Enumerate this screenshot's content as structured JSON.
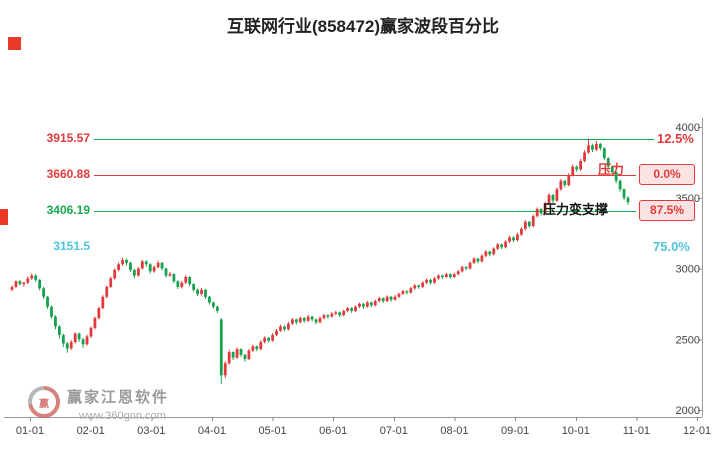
{
  "title": "互联网行业(858472)赢家波段百分比",
  "watermark": {
    "brand": "赢家江恩软件",
    "url": "www.360gnn.com"
  },
  "chart_data": {
    "type": "candlestick",
    "title": "互联网行业(858472)赢家波段百分比",
    "symbol": "858472",
    "y_range": [
      2000,
      4000
    ],
    "y_ticks": [
      "4000",
      "3500",
      "3000",
      "2500",
      "2000"
    ],
    "x_labels": [
      "01-01",
      "02-01",
      "03-01",
      "04-01",
      "05-01",
      "06-01",
      "07-01",
      "08-01",
      "09-01",
      "10-01",
      "11-01",
      "12-01"
    ],
    "legend_position": "none",
    "grid": false,
    "colors": {
      "up": "#e23a3a",
      "down": "#15a24e",
      "pressure_line": "#e23a3a",
      "support_line": "#18a850",
      "cyan_level": "#4fc3dd"
    },
    "levels": [
      {
        "price": "3915.57",
        "value": 3915.57,
        "pct": "12.5%",
        "line": true,
        "line_color": "#18a850",
        "label_color": "#e23a3a",
        "pct_style": "plain"
      },
      {
        "price": "3660.88",
        "value": 3660.88,
        "pct": "0.0%",
        "line": true,
        "line_color": "#e23a3a",
        "label_color": "#e23a3a",
        "pct_style": "box"
      },
      {
        "price": "3406.19",
        "value": 3406.19,
        "pct": "87.5%",
        "line": true,
        "line_color": "#18a850",
        "label_color": "#18a850",
        "pct_style": "box"
      },
      {
        "price": "3151.5",
        "value": 3151.5,
        "pct": "75.0%",
        "line": false,
        "line_color": "",
        "label_color": "#4fc3dd",
        "pct_style": "plain"
      }
    ],
    "annotations": [
      {
        "text": "压力",
        "color": "#e23a3a",
        "near_value": 3660.88
      },
      {
        "text": "压力变支撑",
        "color": "#111111",
        "near_value": 3406.19
      }
    ],
    "candles": [
      [
        2850,
        2880,
        2840,
        2870
      ],
      [
        2870,
        2915,
        2860,
        2910
      ],
      [
        2910,
        2920,
        2880,
        2890
      ],
      [
        2890,
        2905,
        2870,
        2900
      ],
      [
        2900,
        2945,
        2890,
        2930
      ],
      [
        2930,
        2965,
        2920,
        2950
      ],
      [
        2950,
        2960,
        2905,
        2920
      ],
      [
        2920,
        2925,
        2845,
        2860
      ],
      [
        2860,
        2870,
        2785,
        2800
      ],
      [
        2800,
        2805,
        2715,
        2730
      ],
      [
        2730,
        2740,
        2645,
        2660
      ],
      [
        2660,
        2670,
        2570,
        2590
      ],
      [
        2590,
        2600,
        2505,
        2530
      ],
      [
        2530,
        2540,
        2445,
        2470
      ],
      [
        2470,
        2480,
        2405,
        2435
      ],
      [
        2435,
        2495,
        2425,
        2480
      ],
      [
        2480,
        2550,
        2470,
        2540
      ],
      [
        2540,
        2548,
        2482,
        2500
      ],
      [
        2500,
        2510,
        2440,
        2465
      ],
      [
        2465,
        2532,
        2455,
        2520
      ],
      [
        2520,
        2590,
        2510,
        2580
      ],
      [
        2580,
        2660,
        2570,
        2650
      ],
      [
        2650,
        2730,
        2640,
        2720
      ],
      [
        2720,
        2812,
        2712,
        2800
      ],
      [
        2800,
        2880,
        2790,
        2870
      ],
      [
        2870,
        2942,
        2862,
        2930
      ],
      [
        2930,
        3000,
        2922,
        2990
      ],
      [
        2990,
        3042,
        2980,
        3030
      ],
      [
        3030,
        3078,
        3020,
        3060
      ],
      [
        3060,
        3070,
        3022,
        3040
      ],
      [
        3040,
        3048,
        2975,
        2990
      ],
      [
        2990,
        2998,
        2930,
        2950
      ],
      [
        2950,
        3012,
        2942,
        3000
      ],
      [
        3000,
        3062,
        2992,
        3050
      ],
      [
        3050,
        3058,
        3012,
        3030
      ],
      [
        3030,
        3038,
        2965,
        2980
      ],
      [
        2980,
        3022,
        2970,
        3010
      ],
      [
        3010,
        3055,
        3000,
        3040
      ],
      [
        3040,
        3046,
        2986,
        3000
      ],
      [
        3000,
        3006,
        2936,
        2950
      ],
      [
        2950,
        2976,
        2940,
        2960
      ],
      [
        2960,
        2966,
        2896,
        2910
      ],
      [
        2910,
        2916,
        2855,
        2870
      ],
      [
        2870,
        2912,
        2860,
        2900
      ],
      [
        2900,
        2952,
        2890,
        2940
      ],
      [
        2940,
        2945,
        2875,
        2890
      ],
      [
        2890,
        2896,
        2836,
        2850
      ],
      [
        2850,
        2858,
        2805,
        2820
      ],
      [
        2820,
        2862,
        2810,
        2850
      ],
      [
        2850,
        2856,
        2786,
        2800
      ],
      [
        2800,
        2806,
        2745,
        2760
      ],
      [
        2760,
        2766,
        2716,
        2730
      ],
      [
        2730,
        2738,
        2686,
        2700
      ],
      [
        2640,
        2650,
        2185,
        2245
      ],
      [
        2245,
        2345,
        2225,
        2330
      ],
      [
        2330,
        2425,
        2320,
        2410
      ],
      [
        2410,
        2415,
        2352,
        2370
      ],
      [
        2370,
        2442,
        2362,
        2430
      ],
      [
        2430,
        2436,
        2375,
        2390
      ],
      [
        2390,
        2396,
        2342,
        2360
      ],
      [
        2360,
        2432,
        2352,
        2420
      ],
      [
        2420,
        2462,
        2410,
        2450
      ],
      [
        2450,
        2456,
        2415,
        2430
      ],
      [
        2430,
        2492,
        2422,
        2480
      ],
      [
        2480,
        2522,
        2470,
        2510
      ],
      [
        2510,
        2516,
        2476,
        2490
      ],
      [
        2490,
        2542,
        2482,
        2530
      ],
      [
        2530,
        2572,
        2522,
        2560
      ],
      [
        2560,
        2602,
        2552,
        2590
      ],
      [
        2590,
        2596,
        2556,
        2570
      ],
      [
        2570,
        2622,
        2562,
        2610
      ],
      [
        2610,
        2650,
        2600,
        2640
      ],
      [
        2640,
        2646,
        2606,
        2620
      ],
      [
        2620,
        2660,
        2612,
        2650
      ],
      [
        2650,
        2656,
        2616,
        2630
      ],
      [
        2630,
        2672,
        2622,
        2660
      ],
      [
        2660,
        2666,
        2626,
        2640
      ],
      [
        2640,
        2646,
        2606,
        2620
      ],
      [
        2620,
        2662,
        2612,
        2650
      ],
      [
        2650,
        2680,
        2640,
        2670
      ],
      [
        2670,
        2676,
        2646,
        2660
      ],
      [
        2660,
        2692,
        2652,
        2680
      ],
      [
        2680,
        2700,
        2670,
        2690
      ],
      [
        2690,
        2696,
        2656,
        2670
      ],
      [
        2670,
        2710,
        2662,
        2700
      ],
      [
        2700,
        2730,
        2690,
        2720
      ],
      [
        2720,
        2726,
        2686,
        2700
      ],
      [
        2700,
        2740,
        2692,
        2730
      ],
      [
        2730,
        2760,
        2720,
        2750
      ],
      [
        2750,
        2756,
        2716,
        2730
      ],
      [
        2730,
        2770,
        2722,
        2760
      ],
      [
        2760,
        2766,
        2726,
        2740
      ],
      [
        2740,
        2780,
        2732,
        2770
      ],
      [
        2770,
        2800,
        2760,
        2790
      ],
      [
        2790,
        2796,
        2756,
        2770
      ],
      [
        2770,
        2810,
        2762,
        2800
      ],
      [
        2800,
        2806,
        2766,
        2780
      ],
      [
        2780,
        2812,
        2772,
        2800
      ],
      [
        2800,
        2830,
        2792,
        2820
      ],
      [
        2820,
        2850,
        2812,
        2840
      ],
      [
        2840,
        2846,
        2816,
        2830
      ],
      [
        2830,
        2870,
        2822,
        2860
      ],
      [
        2860,
        2890,
        2850,
        2880
      ],
      [
        2880,
        2886,
        2856,
        2870
      ],
      [
        2870,
        2910,
        2862,
        2900
      ],
      [
        2900,
        2930,
        2890,
        2920
      ],
      [
        2920,
        2926,
        2886,
        2900
      ],
      [
        2900,
        2940,
        2892,
        2930
      ],
      [
        2930,
        2960,
        2920,
        2950
      ],
      [
        2950,
        2956,
        2926,
        2940
      ],
      [
        2940,
        2970,
        2932,
        2960
      ],
      [
        2960,
        2966,
        2926,
        2940
      ],
      [
        2940,
        2972,
        2932,
        2960
      ],
      [
        2960,
        2990,
        2952,
        2980
      ],
      [
        2980,
        3020,
        2972,
        3010
      ],
      [
        3010,
        3016,
        2986,
        3000
      ],
      [
        3000,
        3050,
        2992,
        3040
      ],
      [
        3040,
        3080,
        3030,
        3070
      ],
      [
        3070,
        3076,
        3036,
        3050
      ],
      [
        3050,
        3100,
        3042,
        3090
      ],
      [
        3090,
        3130,
        3080,
        3120
      ],
      [
        3120,
        3126,
        3086,
        3100
      ],
      [
        3100,
        3150,
        3092,
        3140
      ],
      [
        3140,
        3180,
        3130,
        3170
      ],
      [
        3170,
        3176,
        3136,
        3150
      ],
      [
        3150,
        3200,
        3142,
        3190
      ],
      [
        3190,
        3232,
        3180,
        3220
      ],
      [
        3220,
        3226,
        3186,
        3200
      ],
      [
        3200,
        3252,
        3192,
        3240
      ],
      [
        3240,
        3292,
        3230,
        3280
      ],
      [
        3280,
        3342,
        3270,
        3330
      ],
      [
        3330,
        3336,
        3286,
        3300
      ],
      [
        3300,
        3382,
        3292,
        3370
      ],
      [
        3370,
        3432,
        3360,
        3420
      ],
      [
        3420,
        3426,
        3375,
        3390
      ],
      [
        3390,
        3472,
        3382,
        3460
      ],
      [
        3460,
        3532,
        3450,
        3520
      ],
      [
        3520,
        3526,
        3465,
        3480
      ],
      [
        3480,
        3572,
        3470,
        3560
      ],
      [
        3560,
        3634,
        3550,
        3620
      ],
      [
        3620,
        3626,
        3574,
        3590
      ],
      [
        3590,
        3674,
        3580,
        3660
      ],
      [
        3660,
        3734,
        3650,
        3720
      ],
      [
        3720,
        3728,
        3684,
        3700
      ],
      [
        3700,
        3775,
        3690,
        3760
      ],
      [
        3760,
        3836,
        3750,
        3820
      ],
      [
        3820,
        3916,
        3810,
        3870
      ],
      [
        3870,
        3882,
        3822,
        3840
      ],
      [
        3840,
        3902,
        3830,
        3880
      ],
      [
        3880,
        3888,
        3834,
        3850
      ],
      [
        3850,
        3856,
        3764,
        3780
      ],
      [
        3780,
        3786,
        3702,
        3720
      ],
      [
        3720,
        3730,
        3662,
        3680
      ],
      [
        3680,
        3686,
        3602,
        3620
      ],
      [
        3620,
        3628,
        3544,
        3560
      ],
      [
        3560,
        3566,
        3482,
        3500
      ],
      [
        3500,
        3510,
        3450,
        3470
      ]
    ]
  }
}
